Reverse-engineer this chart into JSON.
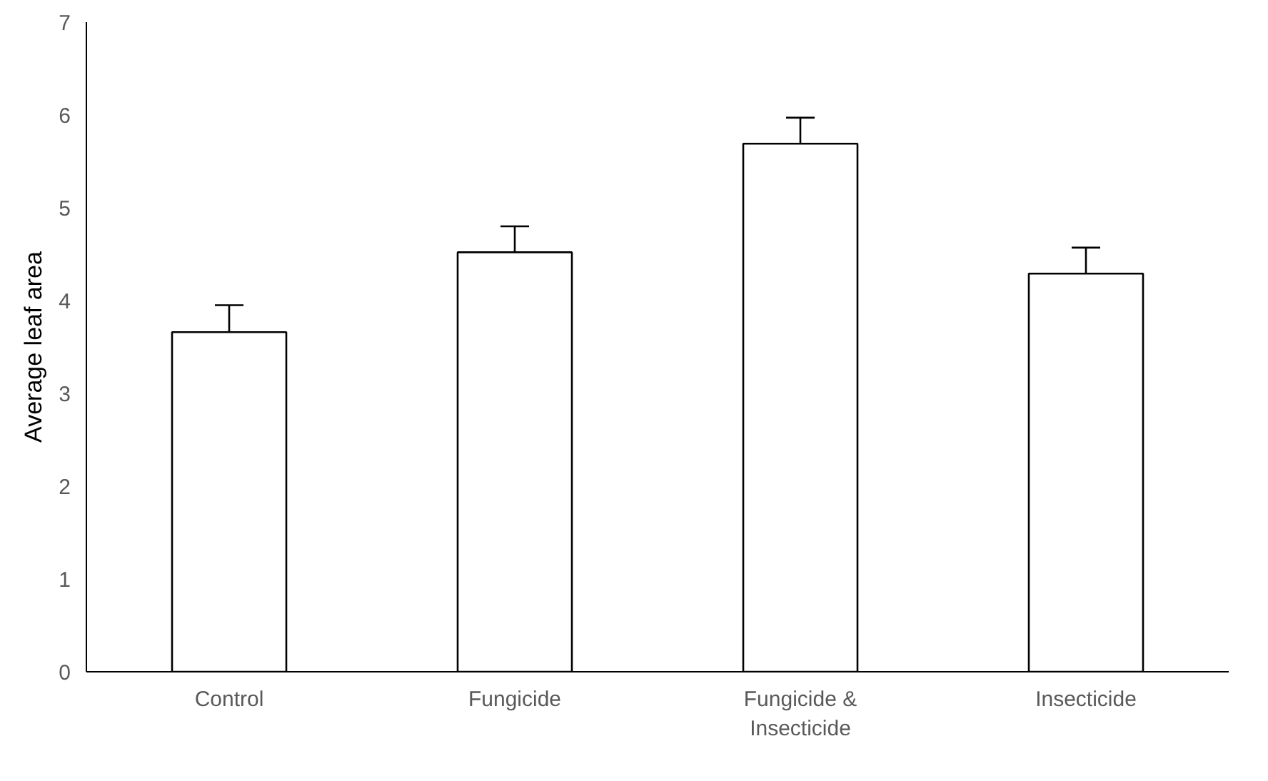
{
  "chart_data": {
    "type": "bar",
    "ylabel": "Average leaf area",
    "categories": [
      "Control",
      "Fungicide",
      "Fungicide & Insecticide",
      "Insecticide"
    ],
    "values": [
      3.66,
      4.52,
      5.69,
      4.29
    ],
    "errors": [
      [
        3.66,
        3.95
      ],
      [
        4.52,
        4.8
      ],
      [
        5.69,
        5.97
      ],
      [
        4.29,
        4.57
      ]
    ],
    "color": "#ffffff",
    "ylim": [
      0,
      7
    ],
    "yticks": [
      0,
      1,
      2,
      3,
      4,
      5,
      6,
      7
    ],
    "grid": false
  }
}
